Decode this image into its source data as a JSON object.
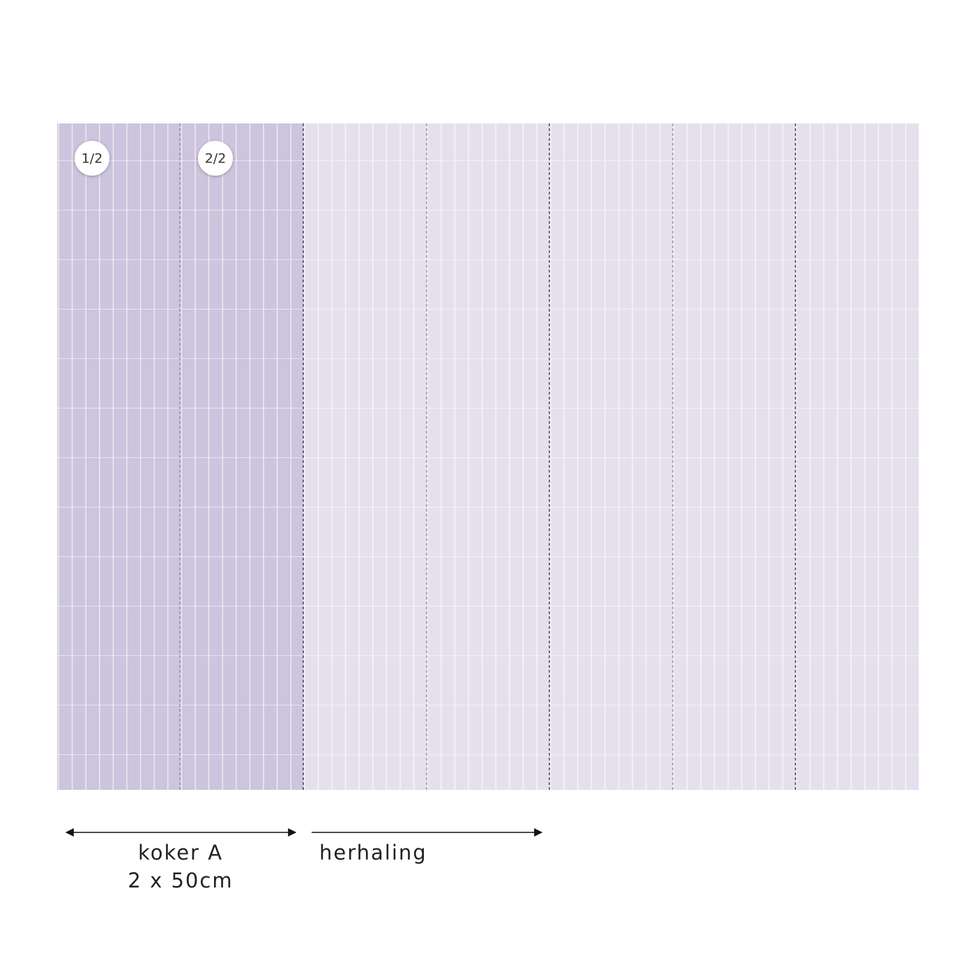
{
  "panels": {
    "badges": [
      "1/2",
      "2/2"
    ]
  },
  "legend": {
    "roll": {
      "label": "koker A",
      "size": "2 x 50cm"
    },
    "repeat": {
      "label": "herhaling"
    }
  }
}
